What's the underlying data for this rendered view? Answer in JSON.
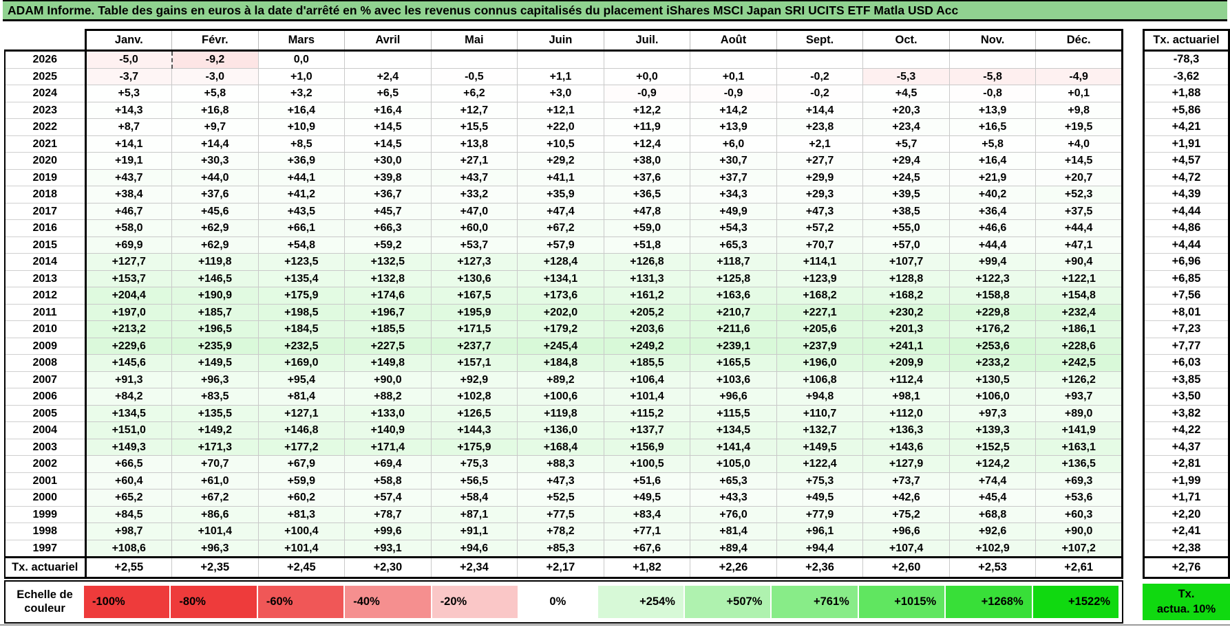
{
  "title": "ADAM Informe. Table des gains en euros à la date d'arrêté en % avec les revenus connus capitalisés du placement iShares MSCI Japan SRI UCITS ETF Matla USD Acc",
  "table": {
    "months": [
      "Janv.",
      "Févr.",
      "Mars",
      "Avril",
      "Mai",
      "Juin",
      "Juil.",
      "Août",
      "Sept.",
      "Oct.",
      "Nov.",
      "Déc."
    ],
    "tx_header": "Tx. actuariel",
    "rows": [
      {
        "year": "2026",
        "values": [
          "-5,0",
          "-9,2",
          "0,0",
          "",
          "",
          "",
          "",
          "",
          "",
          "",
          "",
          ""
        ],
        "tx": "-78,3"
      },
      {
        "year": "2025",
        "values": [
          "-3,7",
          "-3,0",
          "+1,0",
          "+2,4",
          "-0,5",
          "+1,1",
          "+0,0",
          "+0,1",
          "-0,2",
          "-5,3",
          "-5,8",
          "-4,9"
        ],
        "tx": "-3,62"
      },
      {
        "year": "2024",
        "values": [
          "+5,3",
          "+5,8",
          "+3,2",
          "+6,5",
          "+6,2",
          "+3,0",
          "-0,9",
          "-0,9",
          "-0,2",
          "+4,5",
          "-0,8",
          "+0,1"
        ],
        "tx": "+1,88"
      },
      {
        "year": "2023",
        "values": [
          "+14,3",
          "+16,8",
          "+16,4",
          "+16,4",
          "+12,7",
          "+12,1",
          "+12,2",
          "+14,2",
          "+14,4",
          "+20,3",
          "+13,9",
          "+9,8"
        ],
        "tx": "+5,86"
      },
      {
        "year": "2022",
        "values": [
          "+8,7",
          "+9,7",
          "+10,9",
          "+14,5",
          "+15,5",
          "+22,0",
          "+11,9",
          "+13,9",
          "+23,8",
          "+23,4",
          "+16,5",
          "+19,5"
        ],
        "tx": "+4,21"
      },
      {
        "year": "2021",
        "values": [
          "+14,1",
          "+14,4",
          "+8,5",
          "+14,5",
          "+13,8",
          "+10,5",
          "+12,4",
          "+6,0",
          "+2,1",
          "+5,7",
          "+5,8",
          "+4,0"
        ],
        "tx": "+1,91"
      },
      {
        "year": "2020",
        "values": [
          "+19,1",
          "+30,3",
          "+36,9",
          "+30,0",
          "+27,1",
          "+29,2",
          "+38,0",
          "+30,7",
          "+27,7",
          "+29,4",
          "+16,4",
          "+14,5"
        ],
        "tx": "+4,57"
      },
      {
        "year": "2019",
        "values": [
          "+43,7",
          "+44,0",
          "+44,1",
          "+39,8",
          "+43,7",
          "+41,1",
          "+37,6",
          "+37,7",
          "+29,9",
          "+24,5",
          "+21,9",
          "+20,7"
        ],
        "tx": "+4,72"
      },
      {
        "year": "2018",
        "values": [
          "+38,4",
          "+37,6",
          "+41,2",
          "+36,7",
          "+33,2",
          "+35,9",
          "+36,5",
          "+34,3",
          "+29,3",
          "+39,5",
          "+40,2",
          "+52,3"
        ],
        "tx": "+4,39"
      },
      {
        "year": "2017",
        "values": [
          "+46,7",
          "+45,6",
          "+43,5",
          "+45,7",
          "+47,0",
          "+47,4",
          "+47,8",
          "+49,9",
          "+47,3",
          "+38,5",
          "+36,4",
          "+37,5"
        ],
        "tx": "+4,44"
      },
      {
        "year": "2016",
        "values": [
          "+58,0",
          "+62,9",
          "+66,1",
          "+66,3",
          "+60,0",
          "+67,2",
          "+59,0",
          "+54,3",
          "+57,2",
          "+55,0",
          "+46,6",
          "+44,4"
        ],
        "tx": "+4,86"
      },
      {
        "year": "2015",
        "values": [
          "+69,9",
          "+62,9",
          "+54,8",
          "+59,2",
          "+53,7",
          "+57,9",
          "+51,8",
          "+65,3",
          "+70,7",
          "+57,0",
          "+44,4",
          "+47,1"
        ],
        "tx": "+4,44"
      },
      {
        "year": "2014",
        "values": [
          "+127,7",
          "+119,8",
          "+123,5",
          "+132,5",
          "+127,3",
          "+128,4",
          "+126,8",
          "+118,7",
          "+114,1",
          "+107,7",
          "+99,4",
          "+90,4"
        ],
        "tx": "+6,96"
      },
      {
        "year": "2013",
        "values": [
          "+153,7",
          "+146,5",
          "+135,4",
          "+132,8",
          "+130,6",
          "+134,1",
          "+131,3",
          "+125,8",
          "+123,9",
          "+128,8",
          "+122,3",
          "+122,1"
        ],
        "tx": "+6,85"
      },
      {
        "year": "2012",
        "values": [
          "+204,4",
          "+190,9",
          "+175,9",
          "+174,6",
          "+167,5",
          "+173,6",
          "+161,2",
          "+163,6",
          "+168,2",
          "+168,2",
          "+158,8",
          "+154,8"
        ],
        "tx": "+7,56"
      },
      {
        "year": "2011",
        "values": [
          "+197,0",
          "+185,7",
          "+198,5",
          "+196,7",
          "+195,9",
          "+202,0",
          "+205,2",
          "+210,7",
          "+227,1",
          "+230,2",
          "+229,8",
          "+232,4"
        ],
        "tx": "+8,01"
      },
      {
        "year": "2010",
        "values": [
          "+213,2",
          "+196,5",
          "+184,5",
          "+185,5",
          "+171,5",
          "+179,2",
          "+203,6",
          "+211,6",
          "+205,6",
          "+201,3",
          "+176,2",
          "+186,1"
        ],
        "tx": "+7,23"
      },
      {
        "year": "2009",
        "values": [
          "+229,6",
          "+235,9",
          "+232,5",
          "+227,5",
          "+237,7",
          "+245,4",
          "+249,2",
          "+239,1",
          "+237,9",
          "+241,1",
          "+253,6",
          "+228,6"
        ],
        "tx": "+7,77"
      },
      {
        "year": "2008",
        "values": [
          "+145,6",
          "+149,5",
          "+169,0",
          "+149,8",
          "+157,1",
          "+184,8",
          "+185,5",
          "+165,5",
          "+196,0",
          "+209,9",
          "+233,2",
          "+242,5"
        ],
        "tx": "+6,03"
      },
      {
        "year": "2007",
        "values": [
          "+91,3",
          "+96,3",
          "+95,4",
          "+90,0",
          "+92,9",
          "+89,2",
          "+106,4",
          "+103,6",
          "+106,8",
          "+112,4",
          "+130,5",
          "+126,2"
        ],
        "tx": "+3,85"
      },
      {
        "year": "2006",
        "values": [
          "+84,2",
          "+83,5",
          "+81,4",
          "+88,2",
          "+102,8",
          "+100,6",
          "+101,4",
          "+96,6",
          "+94,8",
          "+98,1",
          "+106,0",
          "+93,7"
        ],
        "tx": "+3,50"
      },
      {
        "year": "2005",
        "values": [
          "+134,5",
          "+135,5",
          "+127,1",
          "+133,0",
          "+126,5",
          "+119,8",
          "+115,2",
          "+115,5",
          "+110,7",
          "+112,0",
          "+97,3",
          "+89,0"
        ],
        "tx": "+3,82"
      },
      {
        "year": "2004",
        "values": [
          "+151,0",
          "+149,2",
          "+146,8",
          "+140,9",
          "+144,3",
          "+136,0",
          "+137,7",
          "+134,5",
          "+132,7",
          "+136,3",
          "+139,3",
          "+141,9"
        ],
        "tx": "+4,22"
      },
      {
        "year": "2003",
        "values": [
          "+149,3",
          "+171,3",
          "+177,2",
          "+171,4",
          "+175,9",
          "+168,4",
          "+156,9",
          "+141,4",
          "+149,5",
          "+143,6",
          "+152,5",
          "+163,1"
        ],
        "tx": "+4,37"
      },
      {
        "year": "2002",
        "values": [
          "+66,5",
          "+70,7",
          "+67,9",
          "+69,4",
          "+75,3",
          "+88,3",
          "+100,5",
          "+105,0",
          "+122,4",
          "+127,9",
          "+124,2",
          "+136,5"
        ],
        "tx": "+2,81"
      },
      {
        "year": "2001",
        "values": [
          "+60,4",
          "+61,0",
          "+59,9",
          "+58,8",
          "+56,5",
          "+47,3",
          "+51,6",
          "+65,3",
          "+75,3",
          "+73,7",
          "+74,4",
          "+69,3"
        ],
        "tx": "+1,99"
      },
      {
        "year": "2000",
        "values": [
          "+65,2",
          "+67,2",
          "+60,2",
          "+57,4",
          "+58,4",
          "+52,5",
          "+49,5",
          "+43,3",
          "+49,5",
          "+42,6",
          "+45,4",
          "+53,6"
        ],
        "tx": "+1,71"
      },
      {
        "year": "1999",
        "values": [
          "+84,5",
          "+86,6",
          "+81,3",
          "+78,7",
          "+87,1",
          "+77,5",
          "+83,4",
          "+76,0",
          "+77,9",
          "+75,2",
          "+68,8",
          "+60,3"
        ],
        "tx": "+2,20"
      },
      {
        "year": "1998",
        "values": [
          "+98,7",
          "+101,4",
          "+100,4",
          "+99,6",
          "+91,1",
          "+78,2",
          "+77,1",
          "+81,4",
          "+96,1",
          "+96,6",
          "+92,6",
          "+90,0"
        ],
        "tx": "+2,41"
      },
      {
        "year": "1997",
        "values": [
          "+108,6",
          "+96,3",
          "+101,4",
          "+93,1",
          "+94,6",
          "+85,3",
          "+67,6",
          "+89,4",
          "+94,4",
          "+107,4",
          "+102,9",
          "+107,2"
        ],
        "tx": "+2,38"
      }
    ],
    "footer_label": "Tx. actuariel",
    "footer_values": [
      "+2,55",
      "+2,35",
      "+2,45",
      "+2,30",
      "+2,34",
      "+2,17",
      "+1,82",
      "+2,26",
      "+2,36",
      "+2,60",
      "+2,53",
      "+2,61"
    ],
    "footer_tx": "+2,76",
    "selection_marker": {
      "row_year": "2026",
      "col_index": 1
    }
  },
  "legend": {
    "label": "Echelle de couleur",
    "cells": [
      {
        "label": "-100%",
        "value": -100
      },
      {
        "label": "-80%",
        "value": -80
      },
      {
        "label": "-60%",
        "value": -60
      },
      {
        "label": "-40%",
        "value": -40
      },
      {
        "label": "-20%",
        "value": -20
      },
      {
        "label": "0%",
        "value": 0
      },
      {
        "label": "+254%",
        "value": 254
      },
      {
        "label": "+507%",
        "value": 507
      },
      {
        "label": "+761%",
        "value": 761
      },
      {
        "label": "+1015%",
        "value": 1015
      },
      {
        "label": "+1268%",
        "value": 1268
      },
      {
        "label": "+1522%",
        "value": 1522
      }
    ],
    "tx_box_line1": "Tx.",
    "tx_box_line2": "actua. 10%"
  },
  "colors": {
    "title_bg": "#90d290",
    "negative_end": "#ee3b3b",
    "positive_end": "#10d910",
    "neg_scale_limit": -70,
    "pos_scale_limit": 1522
  }
}
